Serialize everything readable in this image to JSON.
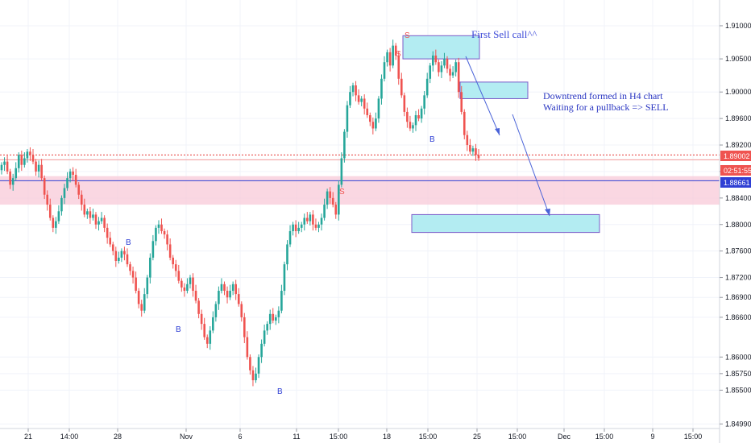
{
  "chart_data": {
    "type": "candlestick",
    "ylim": [
      1.8497,
      1.9134
    ],
    "y_ticks": [
      "1.91000",
      "1.90500",
      "1.90000",
      "1.89600",
      "1.89200",
      "1.88800",
      "1.88400",
      "1.88000",
      "1.87600",
      "1.87200",
      "1.86900",
      "1.86600",
      "1.86000",
      "1.85750",
      "1.85500",
      "1.84990"
    ],
    "x_ticks": [
      "21",
      "14:00",
      "28",
      "Nov",
      "6",
      "11",
      "15:00",
      "18",
      "15:00",
      "25",
      "15:00",
      "Dec",
      "15:00",
      "9",
      "15:00"
    ],
    "price_labels": {
      "last_price": "1.89002",
      "countdown": "02:51:55",
      "line_price": "1.88661"
    },
    "zones": {
      "demand_zone": [
        1.883,
        1.8873
      ],
      "sell_box_1": [
        1.905,
        1.9085
      ],
      "sell_box_2": [
        1.899,
        1.9015
      ],
      "target_box": [
        1.8788,
        1.8815
      ]
    },
    "annotations": {
      "first_sell": "First Sell call^^",
      "downtrend_line1": "Downtrend formed in H4 chart",
      "downtrend_line2": "Waiting for a pullback => SELL"
    },
    "signals": [
      {
        "label": "S",
        "type": "sell"
      },
      {
        "label": "S",
        "type": "sell"
      },
      {
        "label": "S",
        "type": "sell"
      },
      {
        "label": "B",
        "type": "buy"
      },
      {
        "label": "B",
        "type": "buy"
      },
      {
        "label": "B",
        "type": "buy"
      },
      {
        "label": "B",
        "type": "buy"
      }
    ],
    "close_series": [
      1.889,
      1.8895,
      1.888,
      1.886,
      1.887,
      1.8885,
      1.8905,
      1.889,
      1.89,
      1.891,
      1.8905,
      1.8895,
      1.888,
      1.889,
      1.887,
      1.8845,
      1.883,
      1.881,
      1.8795,
      1.8805,
      1.882,
      1.884,
      1.8855,
      1.887,
      1.888,
      1.8875,
      1.886,
      1.8845,
      1.883,
      1.8815,
      1.882,
      1.881,
      1.8815,
      1.88,
      1.8805,
      1.881,
      1.8795,
      1.878,
      1.877,
      1.876,
      1.8745,
      1.875,
      1.876,
      1.8755,
      1.874,
      1.873,
      1.872,
      1.87,
      1.868,
      1.867,
      1.8695,
      1.872,
      1.875,
      1.8775,
      1.8795,
      1.88,
      1.879,
      1.8785,
      1.877,
      1.875,
      1.874,
      1.873,
      1.8715,
      1.8705,
      1.87,
      1.871,
      1.872,
      1.87,
      1.8685,
      1.8665,
      1.865,
      1.863,
      1.862,
      1.864,
      1.866,
      1.868,
      1.87,
      1.871,
      1.87,
      1.869,
      1.87,
      1.871,
      1.8695,
      1.868,
      1.866,
      1.863,
      1.86,
      1.858,
      1.8565,
      1.8575,
      1.86,
      1.862,
      1.864,
      1.865,
      1.8665,
      1.8655,
      1.866,
      1.867,
      1.87,
      1.874,
      1.877,
      1.879,
      1.88,
      1.879,
      1.8795,
      1.88,
      1.881,
      1.8805,
      1.8815,
      1.88,
      1.8795,
      1.88,
      1.881,
      1.883,
      1.885,
      1.884,
      1.883,
      1.8815,
      1.886,
      1.89,
      1.894,
      1.898,
      1.9,
      1.901,
      1.8995,
      1.8985,
      1.899,
      1.8975,
      1.8965,
      1.8955,
      1.8945,
      1.896,
      1.899,
      1.902,
      1.9045,
      1.906,
      1.904,
      1.907,
      1.9055,
      1.902,
      1.8995,
      1.897,
      1.8955,
      1.8945,
      1.895,
      1.8965,
      1.896,
      1.8975,
      1.8995,
      1.902,
      1.904,
      1.9055,
      1.9045,
      1.903,
      1.904,
      1.905,
      1.9035,
      1.9025,
      1.903,
      1.9045,
      1.9,
      1.897,
      1.8935,
      1.892,
      1.891,
      1.8915,
      1.8905,
      1.89
    ]
  }
}
